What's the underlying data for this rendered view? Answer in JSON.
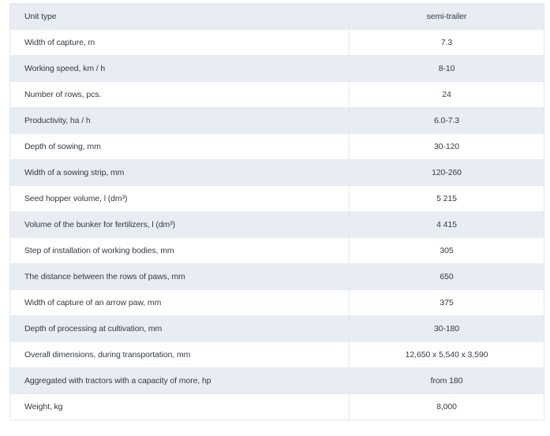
{
  "specs": [
    {
      "param": "Unit type",
      "value": "semi-trailer"
    },
    {
      "param": "Width of capture, m",
      "value": "7.3"
    },
    {
      "param": "Working speed, km / h",
      "value": "8-10"
    },
    {
      "param": "Number of rows, pcs.",
      "value": "24"
    },
    {
      "param": "Productivity, ha / h",
      "value": "6.0-7.3"
    },
    {
      "param": "Depth of sowing, mm",
      "value": "30-120"
    },
    {
      "param": "Width of a sowing strip, mm",
      "value": "120-260"
    },
    {
      "param": "Seed hopper volume, l (dm³)",
      "value": "5 215"
    },
    {
      "param": "Volume of the bunker for fertilizers, l (dm³)",
      "value": "4 415"
    },
    {
      "param": "Step of installation of working bodies, mm",
      "value": "305"
    },
    {
      "param": "The distance between the rows of paws, mm",
      "value": "650"
    },
    {
      "param": "Width of capture of an arrow paw, mm",
      "value": "375"
    },
    {
      "param": "Depth of processing at cultivation, mm",
      "value": "30-180"
    },
    {
      "param": "Overall dimensions, during transportation, mm",
      "value": "12,650 x 5,540 x 3,590"
    },
    {
      "param": "Aggregated with tractors with a capacity of more, hp",
      "value": "from 180"
    },
    {
      "param": "Weight, kg",
      "value": "8,000"
    }
  ]
}
